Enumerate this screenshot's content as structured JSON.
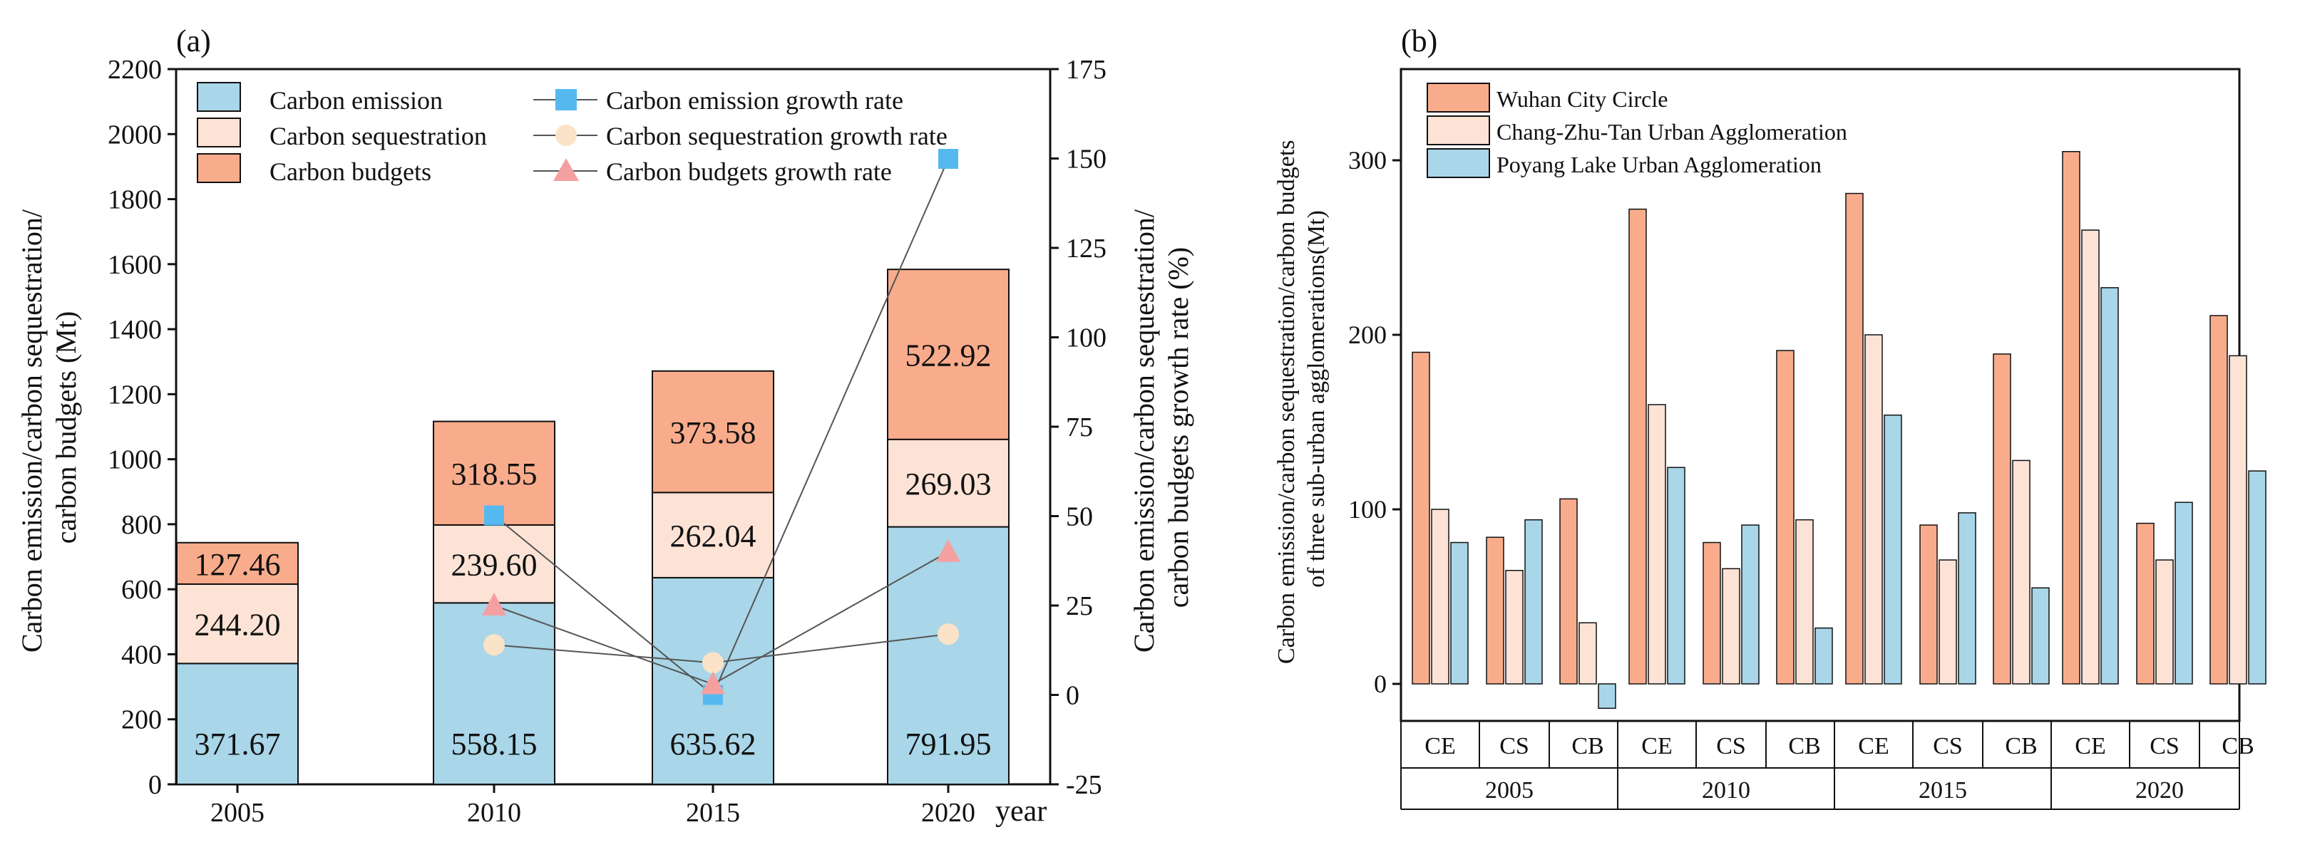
{
  "colors": {
    "emission": "#a9d6e8",
    "sequestration": "#fde3d6",
    "budgets": "#f9ac8c",
    "emission_marker": "#55b9f0",
    "sequestration_marker": "#fbe3c7",
    "budgets_marker": "#f4a0a1",
    "axis": "#111111",
    "line": "#555555"
  },
  "chart_data": [
    {
      "id": "a",
      "type": "bar",
      "stacked": true,
      "panel_label": "(a)",
      "categories": [
        "2005",
        "2010",
        "2015",
        "2020"
      ],
      "xlabel": "year",
      "ylabel_lines": [
        "Carbon emission/carbon sequestration/",
        "carbon budgets (Mt)"
      ],
      "ylabel_right_lines": [
        "Carbon emission/carbon sequestration/",
        "carbon budgets growth rate (%)"
      ],
      "ylim": [
        0,
        2200
      ],
      "yticks": [
        0,
        200,
        400,
        600,
        800,
        1000,
        1200,
        1400,
        1600,
        1800,
        2000,
        2200
      ],
      "ylim_right": [
        -25,
        175
      ],
      "yticks_right": [
        -25,
        0,
        25,
        50,
        75,
        100,
        125,
        150,
        175
      ],
      "series": [
        {
          "name": "Carbon emission",
          "values": [
            371.67,
            558.15,
            635.62,
            791.95
          ],
          "labels": [
            "371.67",
            "558.15",
            "635.62",
            "791.95"
          ]
        },
        {
          "name": "Carbon sequestration",
          "values": [
            244.2,
            239.6,
            262.04,
            269.03
          ],
          "labels": [
            "244.20",
            "239.60",
            "262.04",
            "269.03"
          ]
        },
        {
          "name": "Carbon budgets",
          "values": [
            127.46,
            318.55,
            373.58,
            522.92
          ],
          "labels": [
            "127.46",
            "318.55",
            "373.58",
            "522.92"
          ]
        }
      ],
      "growth_series": [
        {
          "name": "Carbon emission growth rate",
          "categories": [
            "2010",
            "2015",
            "2020"
          ],
          "values": [
            50.2,
            0,
            149.9
          ],
          "marker": "square"
        },
        {
          "name": "Carbon sequestration growth rate",
          "categories": [
            "2010",
            "2015",
            "2020"
          ],
          "values": [
            14,
            9,
            17
          ],
          "marker": "circle"
        },
        {
          "name": "Carbon budgets growth rate",
          "categories": [
            "2010",
            "2015",
            "2020"
          ],
          "values": [
            25,
            3,
            40
          ],
          "marker": "triangle"
        }
      ],
      "legend_position": "top"
    },
    {
      "id": "b",
      "type": "bar",
      "grouped": true,
      "panel_label": "(b)",
      "ylabel_lines": [
        "Carbon emission/carbon sequestration/carbon budgets",
        "of three sub-urban agglomerations(Mt)"
      ],
      "ylim": [
        -30,
        350
      ],
      "yticks": [
        0,
        100,
        200,
        300
      ],
      "years": [
        "2005",
        "2010",
        "2015",
        "2020"
      ],
      "indicators": [
        "CE",
        "CS",
        "CB"
      ],
      "series": [
        {
          "name": "Wuhan City Circle",
          "values": [
            [
              190,
              84,
              106
            ],
            [
              272,
              81,
              191
            ],
            [
              281,
              91,
              189
            ],
            [
              305,
              92,
              211
            ]
          ]
        },
        {
          "name": "Chang-Zhu-Tan Urban Agglomeration",
          "values": [
            [
              100,
              65,
              35
            ],
            [
              160,
              66,
              94
            ],
            [
              200,
              71,
              128
            ],
            [
              260,
              71,
              188
            ]
          ]
        },
        {
          "name": "Poyang Lake Urban Agglomeration",
          "values": [
            [
              81,
              94,
              -14
            ],
            [
              124,
              91,
              32
            ],
            [
              154,
              98,
              55
            ],
            [
              227,
              104,
              122
            ]
          ]
        }
      ],
      "legend_position": "top-left"
    }
  ]
}
